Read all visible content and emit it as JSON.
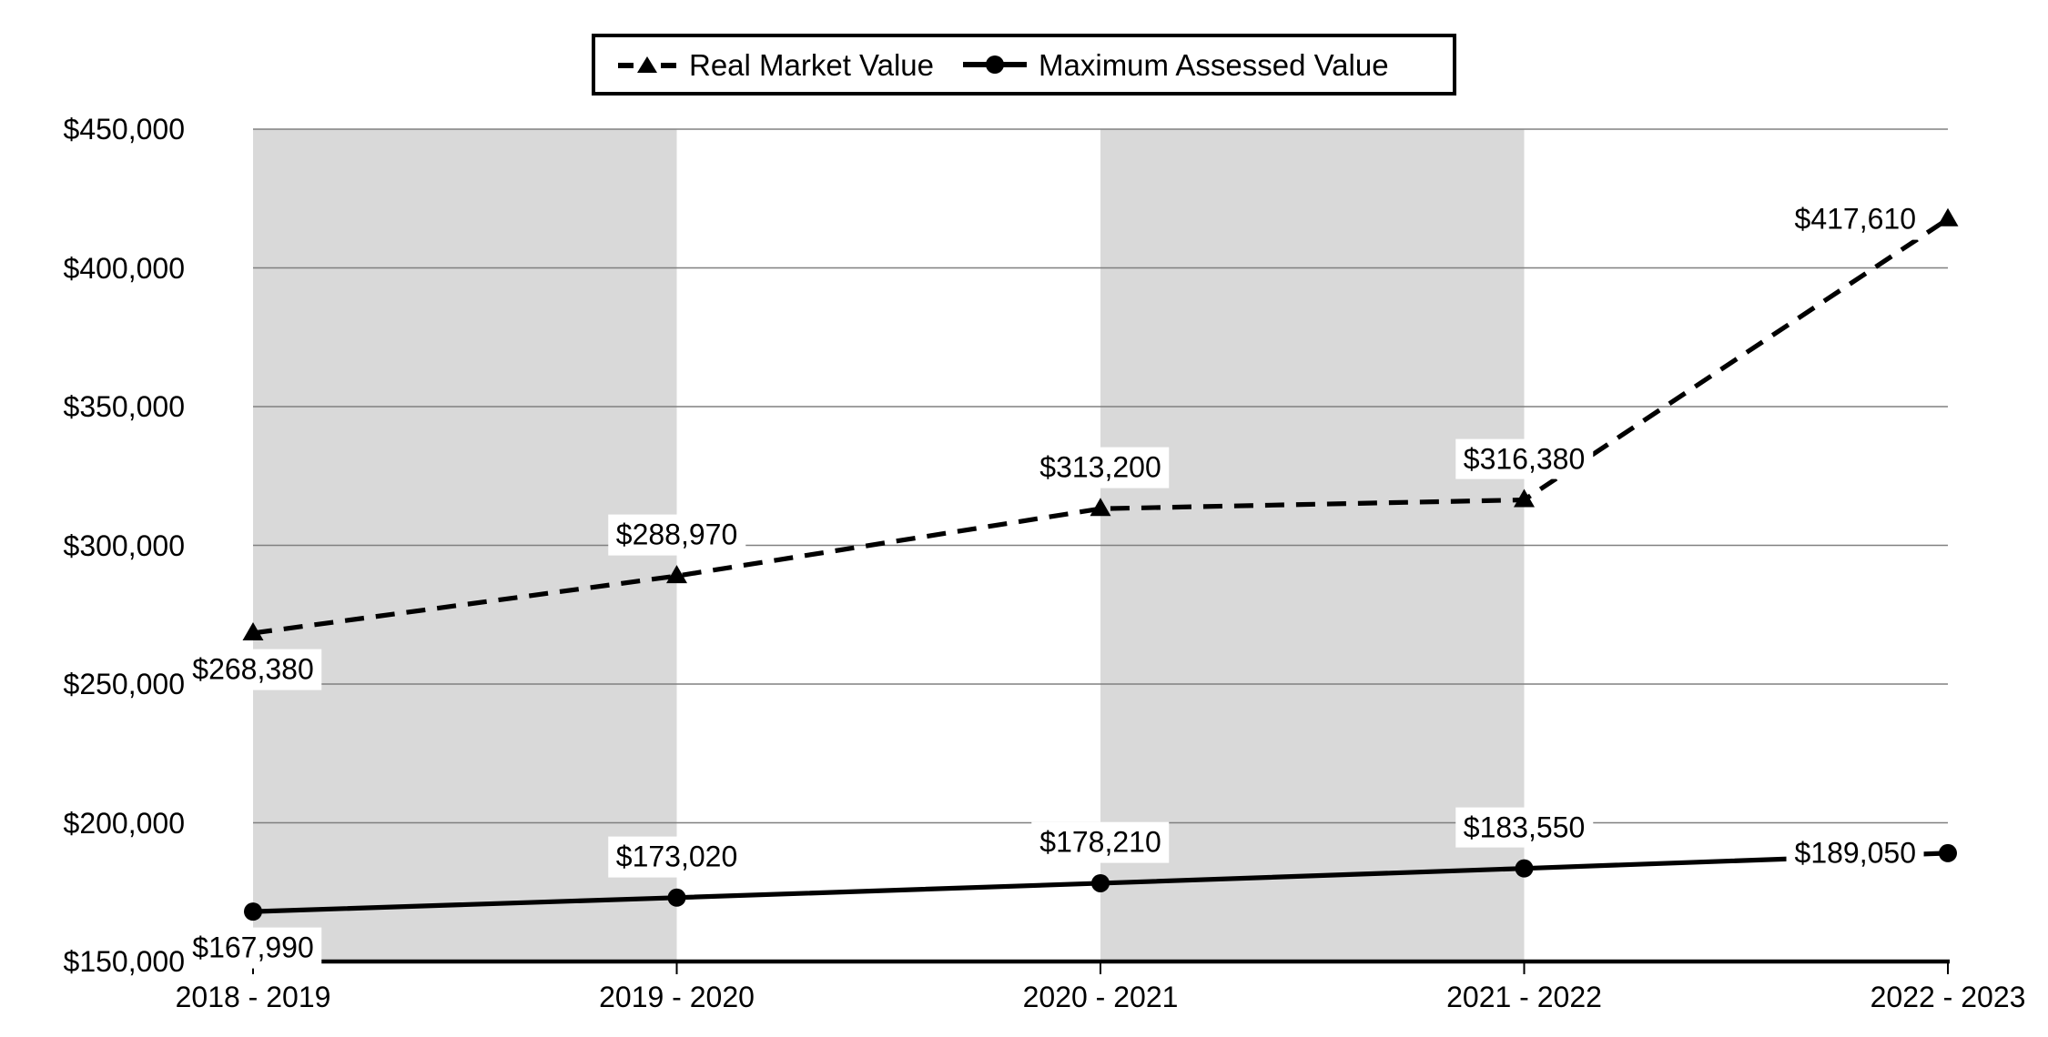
{
  "legend": {
    "items": [
      {
        "label": "Real Market Value",
        "marker": "dashed-line-triangle"
      },
      {
        "label": "Maximum Assessed Value",
        "marker": "solid-line-circle"
      }
    ],
    "position": "top-center"
  },
  "chart_data": {
    "type": "line",
    "categories": [
      "2018 - 2019",
      "2019 - 2020",
      "2020 - 2021",
      "2021 - 2022",
      "2022 - 2023"
    ],
    "series": [
      {
        "name": "Real Market Value",
        "line_style": "dashed",
        "marker": "triangle",
        "values": [
          268380,
          288970,
          313200,
          316380,
          417610
        ],
        "data_labels": [
          "$268,380",
          "$288,970",
          "$313,200",
          "$316,380",
          "$417,610"
        ],
        "label_placements": [
          "below",
          "above",
          "above",
          "above",
          "left"
        ]
      },
      {
        "name": "Maximum Assessed Value",
        "line_style": "solid",
        "marker": "circle",
        "values": [
          167990,
          173020,
          178210,
          183550,
          189050
        ],
        "data_labels": [
          "$167,990",
          "$173,020",
          "$178,210",
          "$183,550",
          "$189,050"
        ],
        "label_placements": [
          "below",
          "above",
          "above",
          "above",
          "left"
        ]
      }
    ],
    "y_axis": {
      "min": 150000,
      "max": 450000,
      "step": 50000,
      "tick_labels": [
        "$450,000",
        "$400,000",
        "$350,000",
        "$300,000",
        "$250,000",
        "$200,000",
        "$150,000"
      ]
    },
    "x_axis": {
      "tick_labels": [
        "2018 - 2019",
        "2019 - 2020",
        "2020 - 2021",
        "2021 - 2022",
        "2022 - 2023"
      ]
    },
    "shaded_band_between_categories": [
      [
        0,
        1
      ],
      [
        2,
        3
      ]
    ],
    "grid": "horizontal",
    "legend_position": "top-center"
  },
  "colors": {
    "background": "#ffffff",
    "band": "#d9d9d9",
    "gridline": "#808080",
    "series": "#000000",
    "axis": "#000000",
    "text": "#000000",
    "label_background": "#ffffff",
    "legend_border": "#000000"
  }
}
